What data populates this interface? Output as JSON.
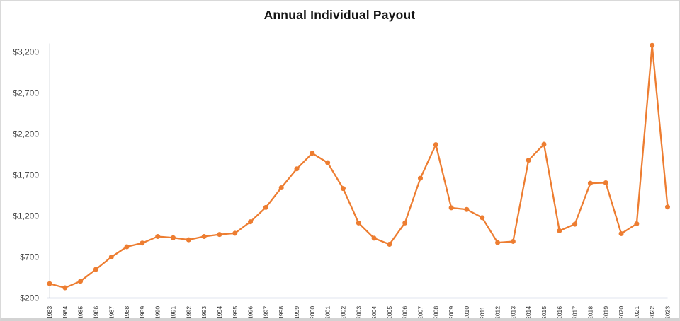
{
  "chart_data": {
    "type": "line",
    "title": "Annual Individual Payout",
    "xlabel": "",
    "ylabel": "",
    "categories": [
      "1983",
      "1984",
      "1985",
      "1986",
      "1987",
      "1988",
      "1989",
      "1990",
      "1991",
      "1992",
      "1993",
      "1994",
      "1995",
      "1996",
      "1997",
      "1998",
      "1999",
      "2000",
      "2001",
      "2002",
      "2003",
      "2004",
      "2005",
      "2006",
      "2007",
      "2008",
      "2009",
      "2010",
      "2011",
      "2012",
      "2013",
      "2014",
      "2015",
      "2016",
      "2017",
      "2018",
      "2019",
      "2020",
      "2021",
      "2022",
      "2023"
    ],
    "values": [
      375,
      325,
      405,
      550,
      700,
      825,
      870,
      950,
      935,
      910,
      950,
      975,
      990,
      1130,
      1305,
      1545,
      1775,
      1965,
      1850,
      1535,
      1115,
      930,
      855,
      1115,
      1660,
      2070,
      1300,
      1280,
      1180,
      875,
      890,
      1880,
      2075,
      1020,
      1100,
      1600,
      1605,
      985,
      1105,
      3280,
      1310
    ],
    "ylim": [
      200,
      3200
    ],
    "yticks": [
      {
        "value": 200,
        "label": "$200"
      },
      {
        "value": 700,
        "label": "$700"
      },
      {
        "value": 1200,
        "label": "$1,200"
      },
      {
        "value": 1700,
        "label": "$1,700"
      },
      {
        "value": 2200,
        "label": "$2,200"
      },
      {
        "value": 2700,
        "label": "$2,700"
      },
      {
        "value": 3200,
        "label": "$3,200"
      }
    ],
    "grid": true,
    "legend": false,
    "series_name": "Annual Individual Payout",
    "colors": {
      "line": "#ED7D31",
      "marker": "#ED7D31",
      "gridline": "#D4DBE8",
      "x_axis_line": "#8498C0",
      "y_axis_line": "#DADDE2",
      "tick_text": "#404040",
      "title_text": "#151515"
    }
  }
}
